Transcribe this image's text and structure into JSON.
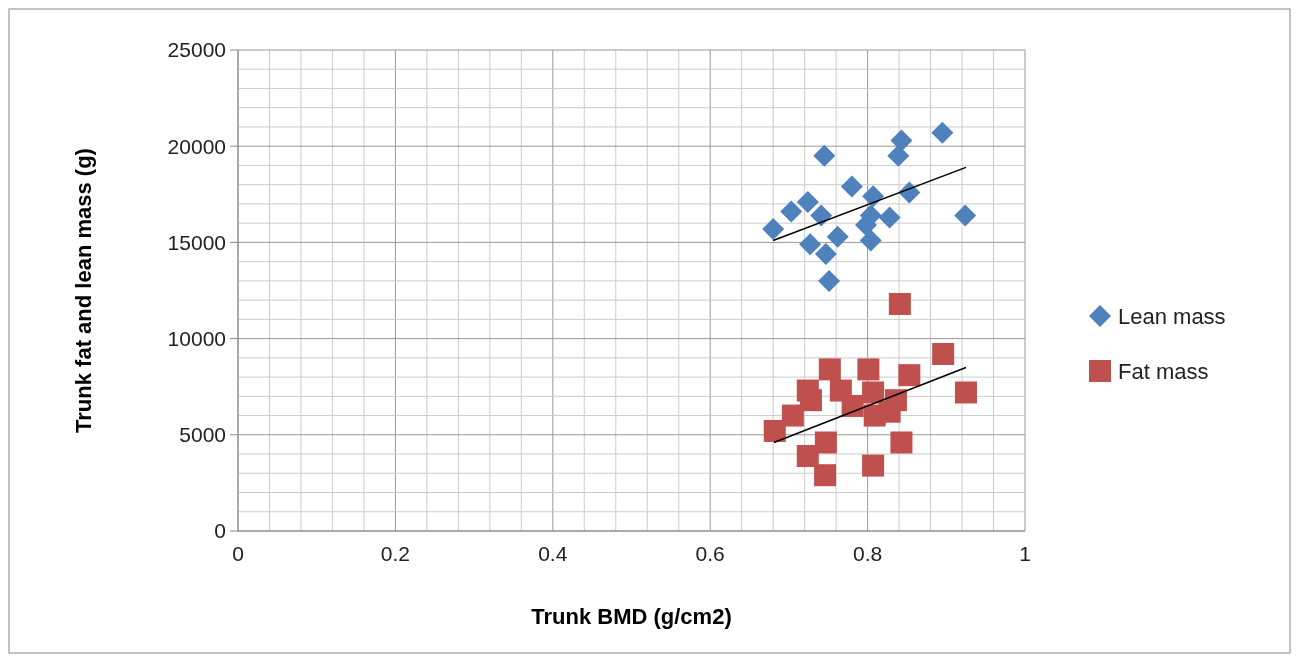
{
  "chart_data": {
    "type": "scatter",
    "xlabel": "Trunk BMD (g/cm2)",
    "ylabel": "Trunk  fat and lean mass (g)",
    "xlim": [
      0,
      1
    ],
    "ylim": [
      0,
      25000
    ],
    "xticks": [
      0,
      {
        "value": 0.04,
        "label": null
      },
      {
        "value": 0.08,
        "label": null
      },
      {
        "value": 0.12,
        "label": null
      },
      {
        "value": 0.16,
        "label": null
      },
      0.2,
      {
        "value": 0.24,
        "label": null
      },
      {
        "value": 0.28,
        "label": null
      },
      {
        "value": 0.32,
        "label": null
      },
      {
        "value": 0.36,
        "label": null
      },
      0.4,
      {
        "value": 0.44,
        "label": null
      },
      {
        "value": 0.48,
        "label": null
      },
      {
        "value": 0.52,
        "label": null
      },
      {
        "value": 0.56,
        "label": null
      },
      0.6,
      {
        "value": 0.64,
        "label": null
      },
      {
        "value": 0.68,
        "label": null
      },
      {
        "value": 0.72,
        "label": null
      },
      {
        "value": 0.76,
        "label": null
      },
      0.8,
      {
        "value": 0.84,
        "label": null
      },
      {
        "value": 0.88,
        "label": null
      },
      {
        "value": 0.92,
        "label": null
      },
      {
        "value": 0.96,
        "label": null
      },
      1
    ],
    "yticks": [
      0,
      {
        "value": 1000,
        "label": null
      },
      {
        "value": 2000,
        "label": null
      },
      {
        "value": 3000,
        "label": null
      },
      {
        "value": 4000,
        "label": null
      },
      5000,
      {
        "value": 6000,
        "label": null
      },
      {
        "value": 7000,
        "label": null
      },
      {
        "value": 8000,
        "label": null
      },
      {
        "value": 9000,
        "label": null
      },
      10000,
      {
        "value": 11000,
        "label": null
      },
      {
        "value": 12000,
        "label": null
      },
      {
        "value": 13000,
        "label": null
      },
      {
        "value": 14000,
        "label": null
      },
      15000,
      {
        "value": 16000,
        "label": null
      },
      {
        "value": 17000,
        "label": null
      },
      {
        "value": 18000,
        "label": null
      },
      {
        "value": 19000,
        "label": null
      },
      20000,
      {
        "value": 21000,
        "label": null
      },
      {
        "value": 22000,
        "label": null
      },
      {
        "value": 23000,
        "label": null
      },
      {
        "value": 24000,
        "label": null
      },
      25000
    ],
    "grid": true,
    "legend": "right",
    "series": [
      {
        "name": "Lean mass",
        "color": "#4f81bd",
        "marker": "diamond",
        "x": [
          0.68,
          0.703,
          0.724,
          0.741,
          0.745,
          0.727,
          0.747,
          0.762,
          0.751,
          0.78,
          0.807,
          0.804,
          0.828,
          0.798,
          0.804,
          0.843,
          0.839,
          0.853,
          0.895,
          0.924
        ],
        "values": [
          15700,
          16600,
          17100,
          16400,
          19500,
          14900,
          14400,
          15300,
          13000,
          17900,
          17400,
          16400,
          16300,
          15900,
          15100,
          20300,
          19500,
          17600,
          20700,
          16400
        ]
      },
      {
        "name": "Fat mass",
        "color": "#c0504d",
        "marker": "square",
        "x": [
          0.682,
          0.705,
          0.724,
          0.728,
          0.752,
          0.766,
          0.724,
          0.747,
          0.746,
          0.801,
          0.807,
          0.781,
          0.809,
          0.836,
          0.828,
          0.843,
          0.807,
          0.841,
          0.853,
          0.896,
          0.925
        ],
        "values": [
          5200,
          6000,
          7300,
          6800,
          8400,
          7300,
          3900,
          4600,
          2900,
          8400,
          7200,
          6500,
          6000,
          6800,
          6200,
          4600,
          3400,
          11800,
          8100,
          9200,
          7200
        ]
      },
      {
        "type": "line",
        "color": "#000000",
        "marker": "none",
        "x": [
          0.68,
          0.925
        ],
        "values": [
          15100,
          18900
        ]
      },
      {
        "type": "line",
        "color": "#000000",
        "marker": "none",
        "x": [
          0.681,
          0.925
        ],
        "values": [
          4600,
          8500
        ]
      }
    ]
  }
}
